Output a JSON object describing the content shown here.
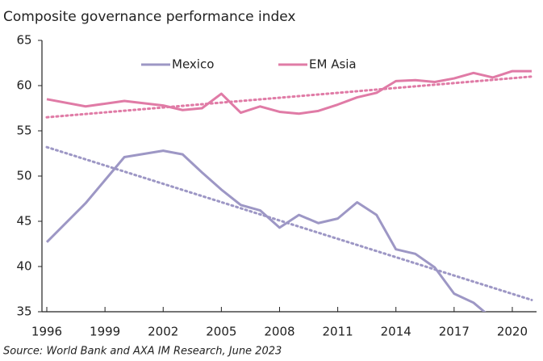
{
  "chart_data": {
    "type": "line",
    "title": "Composite governance performance index",
    "source": "Source: World Bank and AXA IM Research, June 2023",
    "x": [
      1996,
      1998,
      2000,
      2002,
      2003,
      2004,
      2005,
      2006,
      2007,
      2008,
      2009,
      2010,
      2011,
      2012,
      2013,
      2014,
      2015,
      2016,
      2017,
      2018,
      2019,
      2020,
      2021
    ],
    "series": [
      {
        "name": "Mexico",
        "color": "#9d97c5",
        "values": [
          42.7,
          47.0,
          52.1,
          52.8,
          52.4,
          50.4,
          48.5,
          46.8,
          46.2,
          44.3,
          45.7,
          44.8,
          45.3,
          47.1,
          45.7,
          41.9,
          41.4,
          39.9,
          37.0,
          36.0,
          34.2,
          null,
          null
        ]
      },
      {
        "name": "EM Asia",
        "color": "#e07ba6",
        "values": [
          58.5,
          57.7,
          58.3,
          57.8,
          57.3,
          57.5,
          59.1,
          57.0,
          57.7,
          57.1,
          56.9,
          57.2,
          57.9,
          58.7,
          59.2,
          60.5,
          60.6,
          60.4,
          60.8,
          61.4,
          60.9,
          61.6,
          61.6
        ]
      }
    ],
    "trendlines": [
      {
        "color": "#9d97c5",
        "x": [
          1996,
          2021
        ],
        "values": [
          53.2,
          36.3
        ]
      },
      {
        "color": "#e07ba6",
        "x": [
          1996,
          2021
        ],
        "values": [
          56.5,
          61.0
        ]
      }
    ],
    "xlim": [
      1995.75,
      2021.25
    ],
    "ylim": [
      35,
      65
    ],
    "xticks": [
      1996,
      1999,
      2002,
      2005,
      2008,
      2011,
      2014,
      2017,
      2020
    ],
    "yticks": [
      35,
      40,
      45,
      50,
      55,
      60,
      65
    ],
    "legend": "top"
  }
}
